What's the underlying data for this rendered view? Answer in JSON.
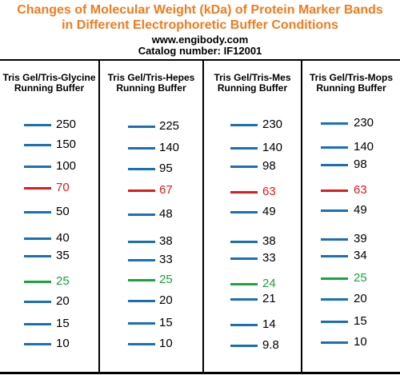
{
  "title_line1": "Changes of Molecular Weight (kDa) of Protein Marker Bands",
  "title_line2": "in Different Electrophoretic Buffer Conditions",
  "website": "www.engibody.com",
  "catalog": "Catalog number: IF12001",
  "colors": {
    "title": "#f27b1d",
    "blue_band": "#1a6fb5",
    "red_band": "#e31a1a",
    "green_band": "#1aa33c"
  },
  "columns": [
    {
      "header_line1": "Tris Gel/Tris-Glycine",
      "header_line2": "Running Buffer",
      "bands": [
        "250",
        "150",
        "100",
        "70",
        "50",
        "40",
        "35",
        "25",
        "20",
        "15",
        "10"
      ]
    },
    {
      "header_line1": "Tris Gel/Tris-Hepes",
      "header_line2": "Running Buffer",
      "bands": [
        "225",
        "140",
        "95",
        "67",
        "48",
        "38",
        "33",
        "25",
        "20",
        "15",
        "10"
      ]
    },
    {
      "header_line1": "Tris Gel/Tris-Mes",
      "header_line2": "Running Buffer",
      "bands": [
        "230",
        "140",
        "98",
        "63",
        "49",
        "38",
        "33",
        "24",
        "21",
        "14",
        "9.8"
      ]
    },
    {
      "header_line1": "Tris Gel/Tris-Mops",
      "header_line2": "Running Buffer",
      "bands": [
        "230",
        "140",
        "98",
        "63",
        "49",
        "39",
        "34",
        "25",
        "20",
        "15",
        "10"
      ]
    }
  ]
}
